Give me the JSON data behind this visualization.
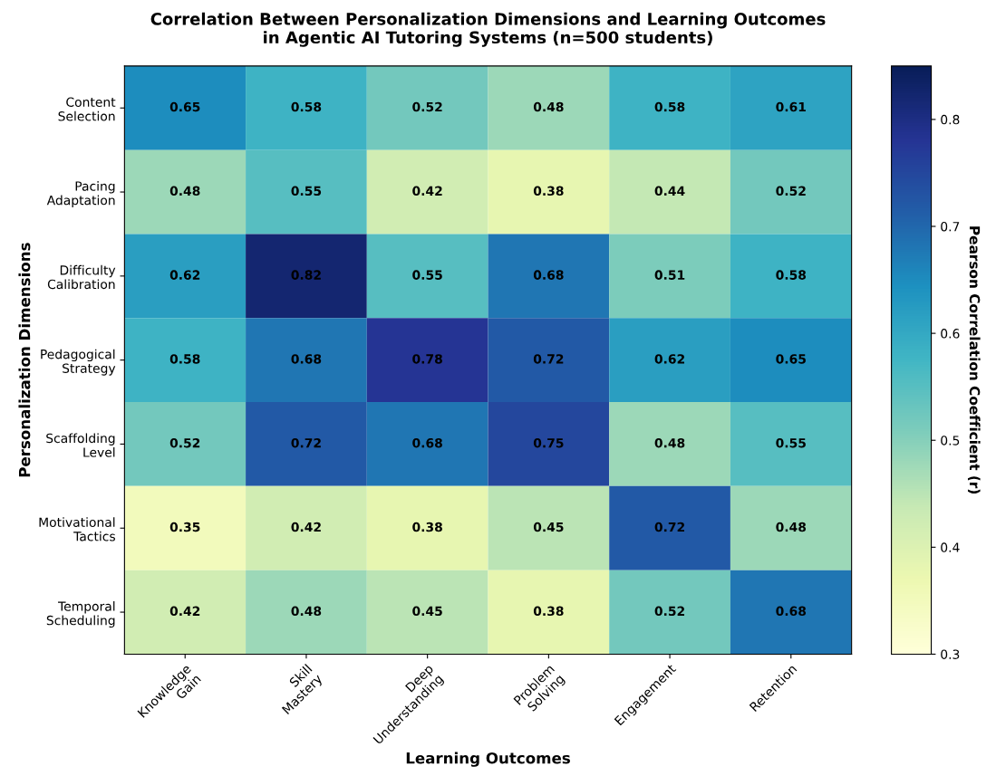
{
  "chart_data": {
    "type": "heatmap",
    "title": "Correlation Between Personalization Dimensions and Learning Outcomes\nin Agentic AI Tutoring Systems (n=500 students)",
    "xlabel": "Learning Outcomes",
    "ylabel": "Personalization Dimensions",
    "clabel": "Pearson Correlation Coefficient (r)",
    "categories": [
      "Knowledge\nGain",
      "Skill\nMastery",
      "Deep\nUnderstanding",
      "Problem\nSolving",
      "Engagement",
      "Retention"
    ],
    "y_categories": [
      "Content\nSelection",
      "Pacing\nAdaptation",
      "Difficulty\nCalibration",
      "Pedagogical\nStrategy",
      "Scaffolding\nLevel",
      "Motivational\nTactics",
      "Temporal\nScheduling"
    ],
    "cells": [
      [
        0.65,
        0.58,
        0.52,
        0.48,
        0.58,
        0.61
      ],
      [
        0.48,
        0.55,
        0.42,
        0.38,
        0.44,
        0.52
      ],
      [
        0.62,
        0.82,
        0.55,
        0.68,
        0.51,
        0.58
      ],
      [
        0.58,
        0.68,
        0.78,
        0.72,
        0.62,
        0.65
      ],
      [
        0.52,
        0.72,
        0.68,
        0.75,
        0.48,
        0.55
      ],
      [
        0.35,
        0.42,
        0.38,
        0.45,
        0.72,
        0.48
      ],
      [
        0.42,
        0.48,
        0.45,
        0.38,
        0.52,
        0.68
      ]
    ],
    "clim": [
      0.3,
      0.85
    ],
    "cticks": [
      0.3,
      0.4,
      0.5,
      0.6,
      0.7,
      0.8
    ],
    "data_labels": true
  }
}
